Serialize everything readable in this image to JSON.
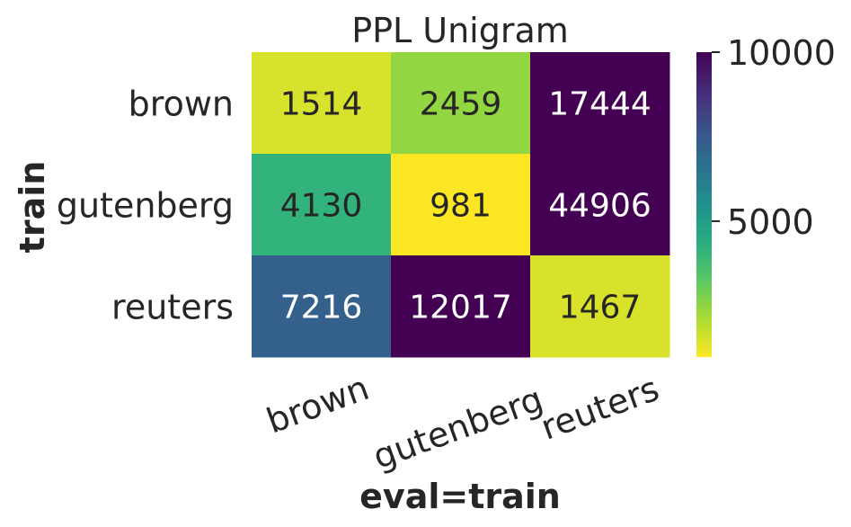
{
  "chart_data": {
    "type": "heatmap",
    "title": "PPL Unigram",
    "xlabel": "eval=train",
    "ylabel": "train",
    "x_categories": [
      "brown",
      "gutenberg",
      "reuters"
    ],
    "y_categories": [
      "brown",
      "gutenberg",
      "reuters"
    ],
    "values": [
      [
        1514,
        2459,
        17444
      ],
      [
        4130,
        981,
        44906
      ],
      [
        7216,
        12017,
        1467
      ]
    ],
    "colormap": "viridis_r",
    "vmin": 981,
    "vmax": 10000,
    "colorbar_ticks": [
      10000,
      5000
    ],
    "colorbar_tick_labels": [
      "10000",
      "5000"
    ],
    "grid": false,
    "legend": "colorbar-right"
  }
}
